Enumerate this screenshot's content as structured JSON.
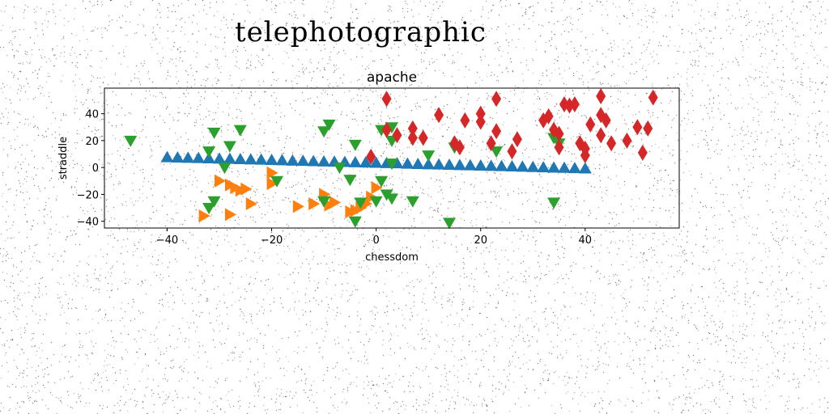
{
  "page": {
    "heading": "telephotographic"
  },
  "chart_data": {
    "type": "scatter",
    "title": "apache",
    "xlabel": "chessdom",
    "ylabel": "straddle",
    "xlim": [
      -52,
      58
    ],
    "ylim": [
      -45,
      59
    ],
    "xticks": [
      -40,
      -20,
      0,
      20,
      40
    ],
    "yticks": [
      -40,
      -20,
      0,
      20,
      40
    ],
    "grid": false,
    "colors": {
      "blue": "#1f77b4",
      "orange": "#ff7f0e",
      "green": "#2ca02c",
      "red": "#d62728"
    },
    "series": [
      {
        "marker": "triangle-up",
        "color": "#1f77b4",
        "points": [
          [
            -40,
            7.5
          ],
          [
            -38,
            7.3
          ],
          [
            -36,
            7.1
          ],
          [
            -34,
            6.9
          ],
          [
            -32,
            6.7
          ],
          [
            -30,
            6.5
          ],
          [
            -28,
            6.3
          ],
          [
            -26,
            6.1
          ],
          [
            -24,
            5.9
          ],
          [
            -22,
            5.7
          ],
          [
            -20,
            5.5
          ],
          [
            -18,
            5.3
          ],
          [
            -16,
            5.0
          ],
          [
            -14,
            4.8
          ],
          [
            -12,
            4.6
          ],
          [
            -10,
            4.4
          ],
          [
            -8,
            4.2
          ],
          [
            -6,
            4.0
          ],
          [
            -4,
            3.8
          ],
          [
            -2,
            3.6
          ],
          [
            0,
            3.4
          ],
          [
            2,
            3.2
          ],
          [
            4,
            3.0
          ],
          [
            6,
            2.7
          ],
          [
            8,
            2.5
          ],
          [
            10,
            2.3
          ],
          [
            12,
            2.1
          ],
          [
            14,
            1.9
          ],
          [
            16,
            1.7
          ],
          [
            18,
            1.5
          ],
          [
            20,
            1.3
          ],
          [
            22,
            1.1
          ],
          [
            24,
            0.9
          ],
          [
            26,
            0.7
          ],
          [
            28,
            0.5
          ],
          [
            30,
            0.2
          ],
          [
            32,
            0.0
          ],
          [
            34,
            -0.2
          ],
          [
            36,
            -0.4
          ],
          [
            38,
            -0.6
          ],
          [
            40,
            -0.8
          ]
        ]
      },
      {
        "marker": "triangle-right",
        "color": "#ff7f0e",
        "points": [
          [
            -33,
            -36
          ],
          [
            -28,
            -35
          ],
          [
            -30,
            -10
          ],
          [
            -28,
            -13
          ],
          [
            -27,
            -15
          ],
          [
            -26,
            -17
          ],
          [
            -25,
            -16
          ],
          [
            -24,
            -27
          ],
          [
            -20,
            -4
          ],
          [
            -20,
            -12
          ],
          [
            -15,
            -29
          ],
          [
            -12,
            -27
          ],
          [
            -10,
            -20
          ],
          [
            -9,
            -28
          ],
          [
            -8,
            -26
          ],
          [
            -5,
            -33
          ],
          [
            -3,
            -30
          ],
          [
            -2,
            -27
          ],
          [
            -1,
            -22
          ],
          [
            0,
            -15
          ],
          [
            -4,
            -32
          ]
        ]
      },
      {
        "marker": "triangle-down",
        "color": "#2ca02c",
        "points": [
          [
            -47,
            20
          ],
          [
            -31,
            26
          ],
          [
            -28,
            16
          ],
          [
            -26,
            28
          ],
          [
            -29,
            0
          ],
          [
            -32,
            12
          ],
          [
            -31,
            -25
          ],
          [
            -32,
            -30
          ],
          [
            -19,
            -10
          ],
          [
            -9,
            32
          ],
          [
            -10,
            27
          ],
          [
            -7,
            0
          ],
          [
            -4,
            17
          ],
          [
            -5,
            -9
          ],
          [
            -4,
            -40
          ],
          [
            1,
            28
          ],
          [
            3,
            30
          ],
          [
            3,
            20
          ],
          [
            3,
            3
          ],
          [
            1,
            -10
          ],
          [
            2,
            -20
          ],
          [
            3,
            -23
          ],
          [
            -3,
            -26
          ],
          [
            0,
            -25
          ],
          [
            7,
            -25
          ],
          [
            10,
            9
          ],
          [
            15,
            15
          ],
          [
            14,
            -41
          ],
          [
            23,
            12
          ],
          [
            34,
            22
          ],
          [
            35,
            18
          ],
          [
            34,
            -26
          ],
          [
            -10,
            -25
          ]
        ]
      },
      {
        "marker": "diamond",
        "color": "#d62728",
        "points": [
          [
            2,
            51
          ],
          [
            -1,
            8
          ],
          [
            2,
            28
          ],
          [
            4,
            24
          ],
          [
            7,
            29
          ],
          [
            7,
            22
          ],
          [
            9,
            22
          ],
          [
            12,
            39
          ],
          [
            15,
            18
          ],
          [
            16,
            15
          ],
          [
            17,
            35
          ],
          [
            20,
            34
          ],
          [
            20,
            40
          ],
          [
            22,
            18
          ],
          [
            23,
            27
          ],
          [
            23,
            51
          ],
          [
            26,
            12
          ],
          [
            27,
            21
          ],
          [
            32,
            35
          ],
          [
            33,
            38
          ],
          [
            34,
            28
          ],
          [
            35,
            25
          ],
          [
            35,
            15
          ],
          [
            36,
            47
          ],
          [
            37,
            46
          ],
          [
            38,
            47
          ],
          [
            39,
            18
          ],
          [
            40,
            14
          ],
          [
            40,
            9
          ],
          [
            41,
            32
          ],
          [
            43,
            53
          ],
          [
            43,
            39
          ],
          [
            44,
            35
          ],
          [
            43,
            24
          ],
          [
            45,
            18
          ],
          [
            48,
            20
          ],
          [
            50,
            30
          ],
          [
            51,
            11
          ],
          [
            52,
            29
          ],
          [
            53,
            52
          ]
        ]
      }
    ]
  }
}
